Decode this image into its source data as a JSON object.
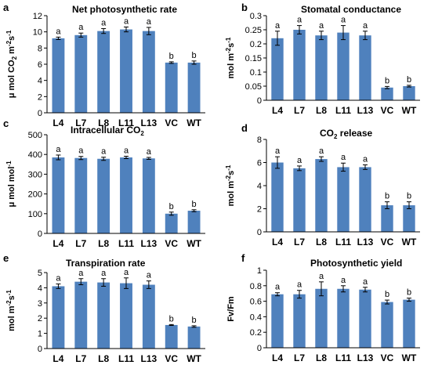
{
  "colors": {
    "bar": "#4f81bd",
    "axis": "#000000"
  },
  "chart_data": [
    {
      "letter": "a",
      "type": "bar",
      "title": "Net photosynthetic rate",
      "ylabel_main": "μ mol CO",
      "ylabel_sub": "2",
      "ylabel_rest": " m",
      "ylabel_sup1": "-2",
      "ylabel_s": "s",
      "ylabel_sup2": "-1",
      "categories": [
        "L4",
        "L7",
        "L8",
        "L11",
        "L13",
        "VC",
        "WT"
      ],
      "values": [
        9.2,
        9.6,
        10.1,
        10.3,
        10.1,
        6.2,
        6.2
      ],
      "errors": [
        0.15,
        0.25,
        0.3,
        0.3,
        0.45,
        0.1,
        0.2
      ],
      "sig": [
        "a",
        "a",
        "a",
        "a",
        "a",
        "b",
        "b"
      ],
      "ylim": [
        0,
        12
      ],
      "yticks": [
        "0",
        "2",
        "4",
        "6",
        "8",
        "10",
        "12"
      ]
    },
    {
      "letter": "b",
      "type": "bar",
      "title": "Stomatal conductance",
      "ylabel_main": "mol m",
      "ylabel_sup1": "-2",
      "ylabel_s": "s",
      "ylabel_sup2": "-1",
      "categories": [
        "L4",
        "L7",
        "L8",
        "L11",
        "L13",
        "VC",
        "WT"
      ],
      "values": [
        0.22,
        0.25,
        0.23,
        0.24,
        0.23,
        0.045,
        0.05
      ],
      "errors": [
        0.025,
        0.015,
        0.015,
        0.025,
        0.015,
        0.004,
        0.003
      ],
      "sig": [
        "a",
        "a",
        "a",
        "a",
        "a",
        "b",
        "b"
      ],
      "ylim": [
        0,
        0.3
      ],
      "yticks": [
        "0",
        "0.05",
        "0.1",
        "0.15",
        "0.2",
        "0.25",
        "0.3"
      ]
    },
    {
      "letter": "c",
      "type": "bar",
      "title": "Intracellular CO",
      "title_sub": "2",
      "ylabel_main": "μ mol mol",
      "ylabel_sup1": "-1",
      "categories": [
        "L4",
        "L7",
        "L8",
        "L11",
        "L13",
        "VC",
        "WT"
      ],
      "values": [
        385,
        382,
        378,
        385,
        380,
        100,
        115
      ],
      "errors": [
        12,
        8,
        8,
        6,
        5,
        8,
        5
      ],
      "sig": [
        "a",
        "a",
        "a",
        "a",
        "a",
        "b",
        "b"
      ],
      "ylim": [
        0,
        500
      ],
      "yticks": [
        "0",
        "100",
        "200",
        "300",
        "400",
        "500"
      ]
    },
    {
      "letter": "d",
      "type": "bar",
      "title": "CO",
      "title_sub": "2",
      "title_rest": " release",
      "ylabel_main": "mol m",
      "ylabel_sup1": "-2",
      "ylabel_s": "s",
      "ylabel_sup2": "-1",
      "categories": [
        "L4",
        "L7",
        "L8",
        "L11",
        "L13",
        "VC",
        "WT"
      ],
      "values": [
        6.0,
        5.5,
        6.3,
        5.6,
        5.6,
        2.3,
        2.3
      ],
      "errors": [
        0.5,
        0.2,
        0.2,
        0.35,
        0.2,
        0.3,
        0.3
      ],
      "sig": [
        "a",
        "a",
        "a",
        "a",
        "a",
        "b",
        "b"
      ],
      "ylim": [
        0,
        8
      ],
      "yticks": [
        "0",
        "2",
        "4",
        "6",
        "8"
      ]
    },
    {
      "letter": "e",
      "type": "bar",
      "title": "Transpiration rate",
      "ylabel_main": "mol m",
      "ylabel_sup1": "-2",
      "ylabel_s": "s",
      "ylabel_sup2": "-1",
      "categories": [
        "L4",
        "L7",
        "L8",
        "L11",
        "L13",
        "VC",
        "WT"
      ],
      "values": [
        4.1,
        4.4,
        4.35,
        4.3,
        4.2,
        1.55,
        1.45
      ],
      "errors": [
        0.15,
        0.2,
        0.25,
        0.35,
        0.25,
        0.03,
        0.05
      ],
      "sig": [
        "a",
        "a",
        "a",
        "a",
        "a",
        "b",
        "b"
      ],
      "ylim": [
        0,
        5
      ],
      "yticks": [
        "0",
        "1",
        "2",
        "3",
        "4",
        "5"
      ]
    },
    {
      "letter": "f",
      "type": "bar",
      "title": "Photosynthetic  yield",
      "ylabel_main": "Fv/Fm",
      "categories": [
        "L4",
        "L7",
        "L8",
        "L11",
        "L13",
        "VC",
        "WT"
      ],
      "values": [
        0.69,
        0.69,
        0.76,
        0.76,
        0.75,
        0.59,
        0.62
      ],
      "errors": [
        0.02,
        0.05,
        0.09,
        0.04,
        0.03,
        0.025,
        0.02
      ],
      "sig": [
        "a",
        "a",
        "a",
        "a",
        "a",
        "b",
        "b"
      ],
      "ylim": [
        0,
        1
      ],
      "yticks": [
        "0",
        "0.2",
        "0.4",
        "0.6",
        "0.8",
        "1"
      ]
    }
  ]
}
